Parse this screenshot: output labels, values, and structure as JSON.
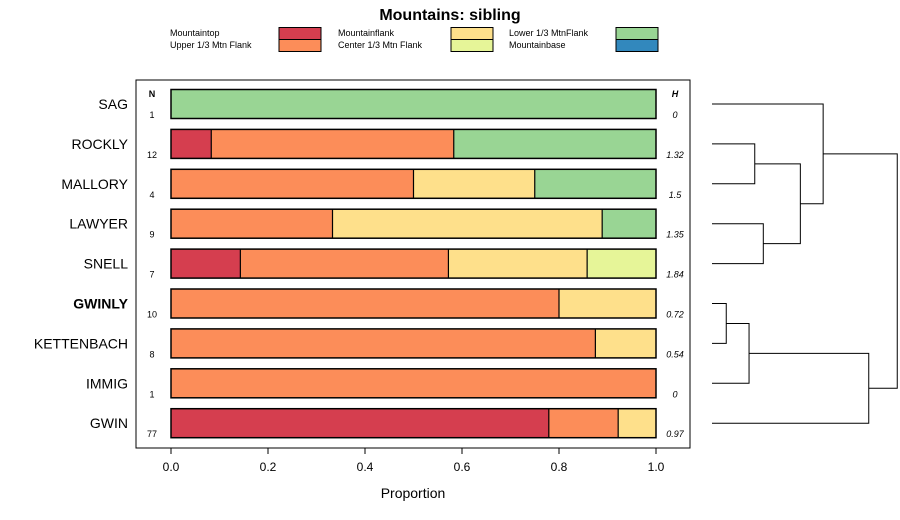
{
  "chart_data": {
    "type": "bar",
    "stacked": true,
    "orientation": "horizontal",
    "title": "Mountains: sibling",
    "xlabel": "Proportion",
    "ylabel": "",
    "xlim": [
      0,
      1
    ],
    "x_ticks": [
      0,
      0.2,
      0.4,
      0.6,
      0.8,
      1
    ],
    "x_tick_labels": [
      "0.0",
      "0.2",
      "0.4",
      "0.6",
      "0.8",
      "1.0"
    ],
    "n_header": "N",
    "h_header": "H",
    "legend_placement": "top",
    "legend": [
      {
        "name": "Mountaintop",
        "color": "#d53e4f"
      },
      {
        "name": "Upper 1/3 Mtn Flank",
        "color": "#fc8d59"
      },
      {
        "name": "Mountainflank",
        "color": "#fee08b"
      },
      {
        "name": "Center 1/3 Mtn Flank",
        "color": "#e6f598"
      },
      {
        "name": "Lower 1/3 MtnFlank",
        "color": "#99d594"
      },
      {
        "name": "Mountainbase",
        "color": "#3288bd"
      }
    ],
    "rows": [
      {
        "label": "SAG",
        "n": "1",
        "h": "0",
        "bold": false,
        "segments": [
          {
            "color": "#99d594",
            "value": 1.0
          }
        ]
      },
      {
        "label": "ROCKLY",
        "n": "12",
        "h": "1.32",
        "bold": false,
        "segments": [
          {
            "color": "#d53e4f",
            "value": 0.083
          },
          {
            "color": "#fc8d59",
            "value": 0.5
          },
          {
            "color": "#99d594",
            "value": 0.417
          }
        ]
      },
      {
        "label": "MALLORY",
        "n": "4",
        "h": "1.5",
        "bold": false,
        "segments": [
          {
            "color": "#fc8d59",
            "value": 0.5
          },
          {
            "color": "#fee08b",
            "value": 0.25
          },
          {
            "color": "#99d594",
            "value": 0.25
          }
        ]
      },
      {
        "label": "LAWYER",
        "n": "9",
        "h": "1.35",
        "bold": false,
        "segments": [
          {
            "color": "#fc8d59",
            "value": 0.333
          },
          {
            "color": "#fee08b",
            "value": 0.556
          },
          {
            "color": "#99d594",
            "value": 0.111
          }
        ]
      },
      {
        "label": "SNELL",
        "n": "7",
        "h": "1.84",
        "bold": false,
        "segments": [
          {
            "color": "#d53e4f",
            "value": 0.143
          },
          {
            "color": "#fc8d59",
            "value": 0.429
          },
          {
            "color": "#fee08b",
            "value": 0.286
          },
          {
            "color": "#e6f598",
            "value": 0.142
          }
        ]
      },
      {
        "label": "GWINLY",
        "n": "10",
        "h": "0.72",
        "bold": true,
        "segments": [
          {
            "color": "#fc8d59",
            "value": 0.8
          },
          {
            "color": "#fee08b",
            "value": 0.2
          }
        ]
      },
      {
        "label": "KETTENBACH",
        "n": "8",
        "h": "0.54",
        "bold": false,
        "segments": [
          {
            "color": "#fc8d59",
            "value": 0.875
          },
          {
            "color": "#fee08b",
            "value": 0.125
          }
        ]
      },
      {
        "label": "IMMIG",
        "n": "1",
        "h": "0",
        "bold": false,
        "segments": [
          {
            "color": "#fc8d59",
            "value": 1.0
          }
        ]
      },
      {
        "label": "GWIN",
        "n": "77",
        "h": "0.97",
        "bold": false,
        "segments": [
          {
            "color": "#d53e4f",
            "value": 0.779
          },
          {
            "color": "#fc8d59",
            "value": 0.143
          },
          {
            "color": "#fee08b",
            "value": 0.078
          }
        ]
      }
    ],
    "dendrogram": {
      "merges": [
        {
          "a": "ROCKLY",
          "b": "MALLORY",
          "height": 0.15
        },
        {
          "a": "LAWYER",
          "b": "SNELL",
          "height": 0.18
        },
        {
          "a": "GWINLY",
          "b": "KETTENBACH",
          "height": 0.05
        },
        {
          "a": "m2",
          "b": "IMMIG",
          "height": 0.13
        },
        {
          "a": "m0",
          "b": "m1",
          "height": 0.31
        },
        {
          "a": "m3",
          "b": "GWIN",
          "height": 0.55
        },
        {
          "a": "SAG",
          "b": "m4",
          "height": 0.39
        },
        {
          "a": "m6",
          "b": "m5",
          "height": 0.65
        }
      ]
    }
  }
}
